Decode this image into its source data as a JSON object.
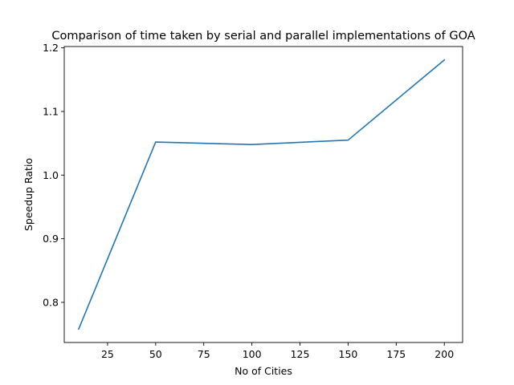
{
  "chart_data": {
    "type": "line",
    "title": "Comparison of time taken by serial and parallel implementations of GOA",
    "xlabel": "No of Cities",
    "ylabel": "Speedup Ratio",
    "x": [
      10,
      50,
      100,
      150,
      200
    ],
    "series": [
      {
        "values": [
          0.758,
          1.052,
          1.048,
          1.055,
          1.181
        ],
        "color": "#1f77b4"
      }
    ],
    "xlim": [
      2.5,
      209.5
    ],
    "ylim": [
      0.7369,
      1.2021
    ],
    "xticks": [
      25,
      50,
      75,
      100,
      125,
      150,
      175,
      200
    ],
    "yticks": [
      0.8,
      0.9,
      1.0,
      1.1,
      1.2
    ],
    "ytick_labels": [
      "0.8",
      "0.9",
      "1.0",
      "1.1",
      "1.2"
    ],
    "grid": false,
    "legend": "none"
  }
}
